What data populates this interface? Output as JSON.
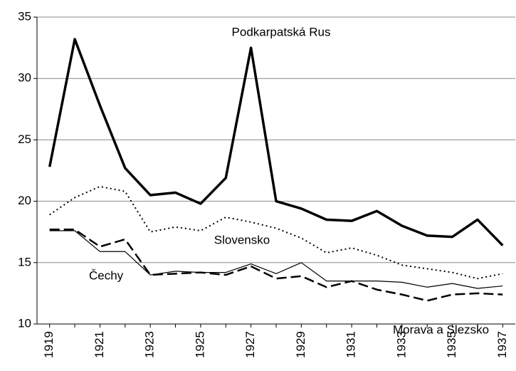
{
  "chart_data": {
    "type": "line",
    "x": [
      1919,
      1920,
      1921,
      1922,
      1923,
      1924,
      1925,
      1926,
      1927,
      1928,
      1929,
      1930,
      1931,
      1932,
      1933,
      1934,
      1935,
      1936,
      1937
    ],
    "series": [
      {
        "name": "Podkarpatská Rus",
        "color": "#000000",
        "style": "solid-thick",
        "values": [
          22.8,
          33.2,
          27.8,
          22.7,
          20.5,
          20.7,
          19.8,
          21.9,
          32.5,
          20.0,
          19.4,
          18.5,
          18.4,
          19.2,
          18.0,
          17.2,
          17.1,
          18.5,
          16.4
        ]
      },
      {
        "name": "Slovensko",
        "color": "#000000",
        "style": "dotted",
        "values": [
          18.9,
          20.3,
          21.2,
          20.8,
          17.5,
          17.9,
          17.6,
          18.7,
          18.3,
          17.8,
          17.0,
          15.8,
          16.2,
          15.6,
          14.8,
          14.5,
          14.2,
          13.7,
          14.1
        ]
      },
      {
        "name": "Čechy",
        "color": "#000000",
        "style": "solid-thin",
        "values": [
          17.6,
          17.6,
          15.9,
          15.9,
          14.0,
          14.3,
          14.2,
          14.2,
          14.9,
          14.1,
          15.0,
          13.5,
          13.5,
          13.5,
          13.4,
          13.0,
          13.3,
          12.9,
          13.1
        ]
      },
      {
        "name": "Morava a Slezsko",
        "color": "#000000",
        "style": "dashed",
        "values": [
          17.7,
          17.7,
          16.3,
          16.9,
          14.0,
          14.1,
          14.2,
          14.0,
          14.7,
          13.7,
          13.9,
          13.0,
          13.5,
          12.8,
          12.4,
          11.9,
          12.4,
          12.5,
          12.4
        ]
      }
    ],
    "xlim": [
      1918.5,
      1937.5
    ],
    "xticks": [
      1919,
      1921,
      1923,
      1925,
      1927,
      1929,
      1931,
      1933,
      1935,
      1937
    ],
    "ylim": [
      10,
      35
    ],
    "yticks": [
      10,
      15,
      20,
      25,
      30,
      35
    ],
    "grid": true
  }
}
